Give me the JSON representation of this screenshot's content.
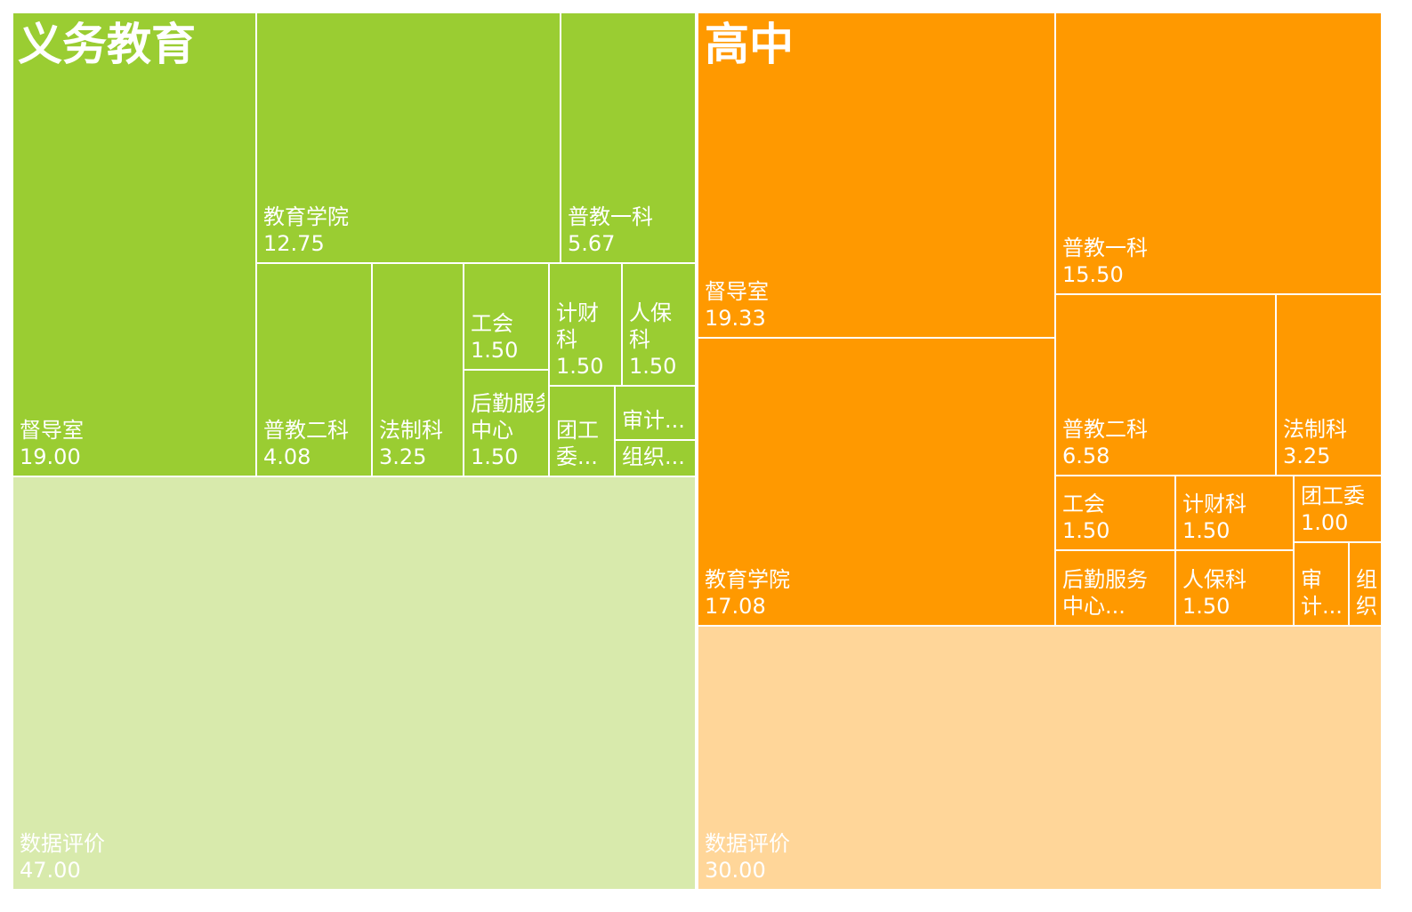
{
  "colors": {
    "义务教育": "#9acd32",
    "义务教育_light": "#d8eaac",
    "高中": "#ff9900",
    "高中_light": "#ffd699",
    "border": "#ffffff",
    "text": "#ffffff"
  },
  "chart_data": {
    "type": "treemap",
    "groups": [
      {
        "name": "义务教育",
        "color": "#9acd32",
        "children": [
          {
            "name": "数据评价",
            "value": 47.0,
            "label": [
              "数据评价",
              "47.00"
            ],
            "shade": "light"
          },
          {
            "name": "督导室",
            "value": 19.0,
            "label": [
              "督导室",
              "19.00"
            ]
          },
          {
            "name": "教育学院",
            "value": 12.75,
            "label": [
              "教育学院",
              "12.75"
            ]
          },
          {
            "name": "普教一科",
            "value": 5.67,
            "label": [
              "普教一科",
              "5.67"
            ]
          },
          {
            "name": "普教二科",
            "value": 4.08,
            "label": [
              "普教二科",
              "4.08"
            ]
          },
          {
            "name": "法制科",
            "value": 3.25,
            "label": [
              "法制科",
              "3.25"
            ]
          },
          {
            "name": "工会",
            "value": 1.5,
            "label": [
              "工会",
              "1.50"
            ]
          },
          {
            "name": "后勤服务中心",
            "value": 1.5,
            "label": [
              "后勤服务",
              "中心",
              "1.50"
            ]
          },
          {
            "name": "计财科",
            "value": 1.5,
            "label": [
              "计财",
              "科",
              "1.50"
            ]
          },
          {
            "name": "人保科",
            "value": 1.5,
            "label": [
              "人保",
              "科",
              "1.50"
            ]
          },
          {
            "name": "团工委",
            "value": 1.0,
            "label": [
              "团工",
              "委..."
            ]
          },
          {
            "name": "审计科",
            "value": 0.75,
            "label": [
              "审计..."
            ]
          },
          {
            "name": "组织科",
            "value": 0.75,
            "label": [
              "组织..."
            ]
          }
        ]
      },
      {
        "name": "高中",
        "color": "#ff9900",
        "children": [
          {
            "name": "数据评价",
            "value": 30.0,
            "label": [
              "数据评价",
              "30.00"
            ],
            "shade": "light"
          },
          {
            "name": "督导室",
            "value": 19.33,
            "label": [
              "督导室",
              "19.33"
            ]
          },
          {
            "name": "教育学院",
            "value": 17.08,
            "label": [
              "教育学院",
              "17.08"
            ]
          },
          {
            "name": "普教一科",
            "value": 15.5,
            "label": [
              "普教一科",
              "15.50"
            ]
          },
          {
            "name": "普教二科",
            "value": 6.58,
            "label": [
              "普教二科",
              "6.58"
            ]
          },
          {
            "name": "法制科",
            "value": 3.25,
            "label": [
              "法制科",
              "3.25"
            ]
          },
          {
            "name": "工会",
            "value": 1.5,
            "label": [
              "工会",
              "1.50"
            ]
          },
          {
            "name": "计财科",
            "value": 1.5,
            "label": [
              "计财科",
              "1.50"
            ]
          },
          {
            "name": "后勤服务中心",
            "value": 1.5,
            "label": [
              "后勤服务",
              "中心..."
            ]
          },
          {
            "name": "人保科",
            "value": 1.5,
            "label": [
              "人保科",
              "1.50"
            ]
          },
          {
            "name": "团工委",
            "value": 1.0,
            "label": [
              "团工委",
              "1.00"
            ]
          },
          {
            "name": "审计科",
            "value": 0.75,
            "label": [
              "审",
              "计..."
            ]
          },
          {
            "name": "组织科",
            "value": 0.75,
            "label": [
              "组",
              "织..."
            ]
          }
        ]
      }
    ]
  }
}
